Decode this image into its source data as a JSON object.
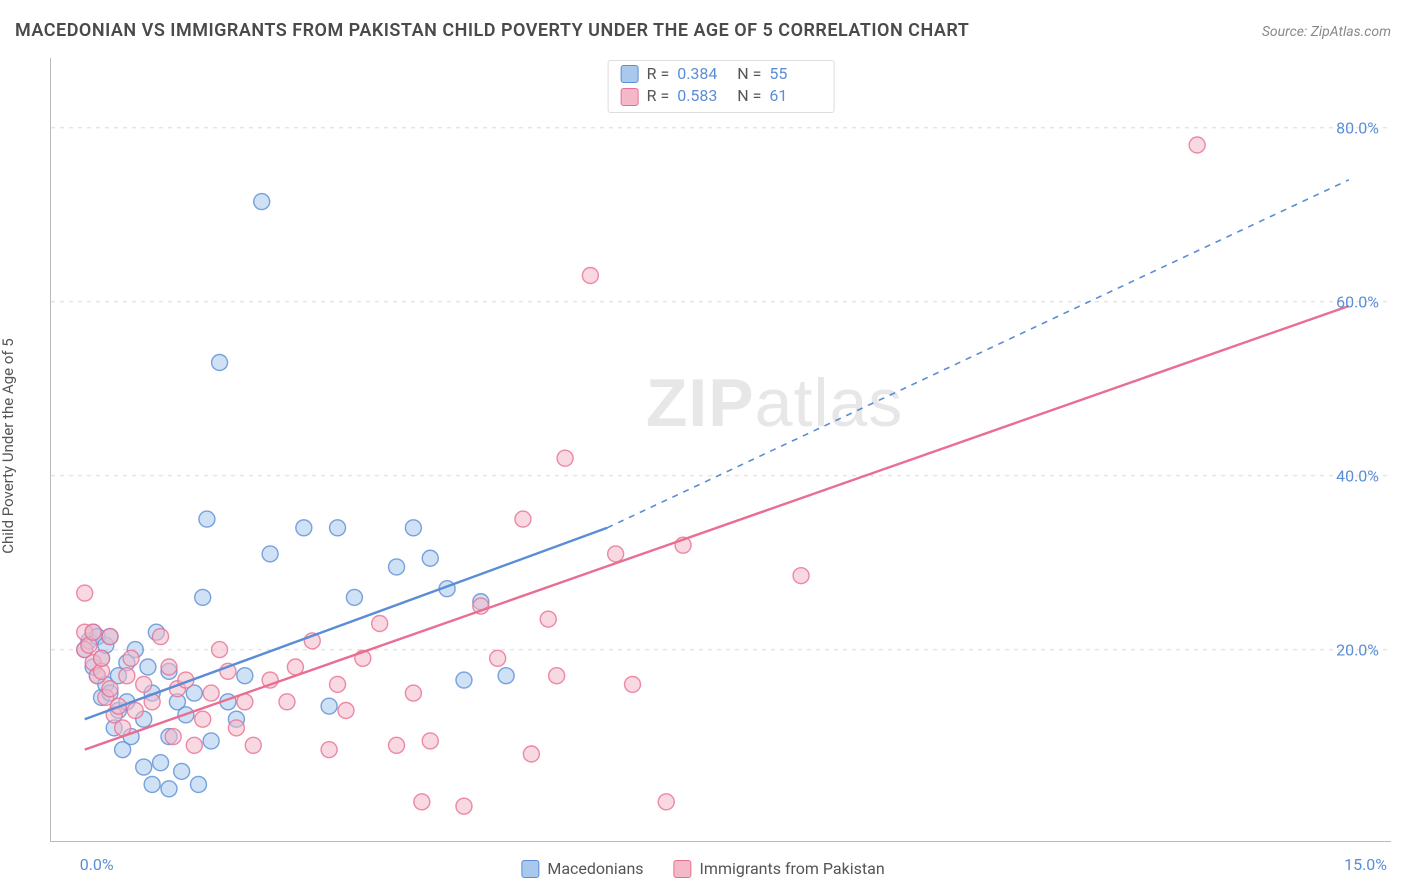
{
  "title": "MACEDONIAN VS IMMIGRANTS FROM PAKISTAN CHILD POVERTY UNDER THE AGE OF 5 CORRELATION CHART",
  "source_label": "Source: ",
  "source_name": "ZipAtlas.com",
  "ylabel": "Child Poverty Under the Age of 5",
  "watermark_a": "ZIP",
  "watermark_b": "atlas",
  "chart": {
    "type": "scatter",
    "background_color": "#ffffff",
    "grid_color": "#e5e5e5",
    "axis_color": "#bbbbbb",
    "tick_label_color": "#5b8dd6",
    "xlim": [
      -0.4,
      15.5
    ],
    "ylim": [
      -2,
      88
    ],
    "xticks": [
      {
        "v": 0.0,
        "label": "0.0%"
      },
      {
        "v": 15.0,
        "label": "15.0%"
      }
    ],
    "yticks": [
      {
        "v": 20,
        "label": "20.0%"
      },
      {
        "v": 40,
        "label": "40.0%"
      },
      {
        "v": 60,
        "label": "60.0%"
      },
      {
        "v": 80,
        "label": "80.0%"
      }
    ],
    "marker_radius": 8,
    "marker_opacity": 0.55,
    "marker_stroke_width": 1.4,
    "trend_line_width": 2.4,
    "series": [
      {
        "key": "macedonians",
        "label": "Macedonians",
        "color_fill": "#a8c8ec",
        "color_stroke": "#5b8dd6",
        "R_label": "R =",
        "R_value": "0.384",
        "N_label": "N =",
        "N_value": "55",
        "trend": {
          "x1": 0.0,
          "y1": 12.0,
          "x2_solid": 6.2,
          "y2_solid": 34.0,
          "x2_dash": 15.0,
          "y2_dash": 74.0,
          "dash_pattern": "6,6"
        },
        "points": [
          [
            0.0,
            20
          ],
          [
            0.05,
            21
          ],
          [
            0.1,
            22
          ],
          [
            0.1,
            18
          ],
          [
            0.15,
            17
          ],
          [
            0.15,
            21.5
          ],
          [
            0.2,
            14.5
          ],
          [
            0.2,
            19
          ],
          [
            0.25,
            16
          ],
          [
            0.25,
            20.5
          ],
          [
            0.3,
            15
          ],
          [
            0.3,
            21.5
          ],
          [
            0.35,
            11
          ],
          [
            0.4,
            13
          ],
          [
            0.4,
            17
          ],
          [
            0.45,
            8.5
          ],
          [
            0.5,
            14
          ],
          [
            0.5,
            18.5
          ],
          [
            0.55,
            10
          ],
          [
            0.6,
            20
          ],
          [
            0.7,
            6.5
          ],
          [
            0.7,
            12
          ],
          [
            0.75,
            18
          ],
          [
            0.8,
            4.5
          ],
          [
            0.8,
            15
          ],
          [
            0.85,
            22
          ],
          [
            0.9,
            7
          ],
          [
            1.0,
            4
          ],
          [
            1.0,
            10
          ],
          [
            1.0,
            17.5
          ],
          [
            1.1,
            14
          ],
          [
            1.15,
            6
          ],
          [
            1.2,
            12.5
          ],
          [
            1.3,
            15
          ],
          [
            1.35,
            4.5
          ],
          [
            1.4,
            26
          ],
          [
            1.45,
            35
          ],
          [
            1.5,
            9.5
          ],
          [
            1.6,
            53
          ],
          [
            1.7,
            14
          ],
          [
            1.8,
            12
          ],
          [
            1.9,
            17
          ],
          [
            2.1,
            71.5
          ],
          [
            2.2,
            31
          ],
          [
            2.6,
            34
          ],
          [
            2.9,
            13.5
          ],
          [
            3.0,
            34
          ],
          [
            3.2,
            26
          ],
          [
            3.7,
            29.5
          ],
          [
            3.9,
            34
          ],
          [
            4.1,
            30.5
          ],
          [
            4.3,
            27
          ],
          [
            4.5,
            16.5
          ],
          [
            4.7,
            25.5
          ],
          [
            5.0,
            17
          ]
        ]
      },
      {
        "key": "pakistan",
        "label": "Immigrants from Pakistan",
        "color_fill": "#f4b9c9",
        "color_stroke": "#e86f92",
        "R_label": "R =",
        "R_value": "0.583",
        "N_label": "N =",
        "N_value": "61",
        "trend": {
          "x1": 0.0,
          "y1": 8.5,
          "x2_solid": 15.0,
          "y2_solid": 59.5,
          "x2_dash": 15.0,
          "y2_dash": 59.5,
          "dash_pattern": ""
        },
        "points": [
          [
            0.0,
            26.5
          ],
          [
            0.0,
            22
          ],
          [
            0.0,
            20
          ],
          [
            0.05,
            20.5
          ],
          [
            0.1,
            22
          ],
          [
            0.1,
            18.5
          ],
          [
            0.15,
            17
          ],
          [
            0.2,
            17.5
          ],
          [
            0.2,
            19
          ],
          [
            0.25,
            14.5
          ],
          [
            0.3,
            15.5
          ],
          [
            0.3,
            21.5
          ],
          [
            0.35,
            12.5
          ],
          [
            0.4,
            13.5
          ],
          [
            0.45,
            11
          ],
          [
            0.5,
            17
          ],
          [
            0.55,
            19
          ],
          [
            0.6,
            13
          ],
          [
            0.7,
            16
          ],
          [
            0.8,
            14
          ],
          [
            0.9,
            21.5
          ],
          [
            1.0,
            18
          ],
          [
            1.05,
            10
          ],
          [
            1.1,
            15.5
          ],
          [
            1.2,
            16.5
          ],
          [
            1.3,
            9
          ],
          [
            1.4,
            12
          ],
          [
            1.5,
            15
          ],
          [
            1.6,
            20
          ],
          [
            1.7,
            17.5
          ],
          [
            1.8,
            11
          ],
          [
            1.9,
            14
          ],
          [
            2.0,
            9
          ],
          [
            2.2,
            16.5
          ],
          [
            2.4,
            14
          ],
          [
            2.5,
            18
          ],
          [
            2.7,
            21
          ],
          [
            2.9,
            8.5
          ],
          [
            3.0,
            16
          ],
          [
            3.1,
            13
          ],
          [
            3.3,
            19
          ],
          [
            3.5,
            23
          ],
          [
            3.7,
            9
          ],
          [
            3.9,
            15
          ],
          [
            4.0,
            2.5
          ],
          [
            4.1,
            9.5
          ],
          [
            4.5,
            2
          ],
          [
            4.7,
            25
          ],
          [
            4.9,
            19
          ],
          [
            5.2,
            35
          ],
          [
            5.3,
            8
          ],
          [
            5.5,
            23.5
          ],
          [
            5.6,
            17
          ],
          [
            5.7,
            42
          ],
          [
            6.0,
            63
          ],
          [
            6.3,
            31
          ],
          [
            6.5,
            16
          ],
          [
            6.9,
            2.5
          ],
          [
            7.1,
            32
          ],
          [
            8.5,
            28.5
          ],
          [
            13.2,
            78
          ]
        ]
      }
    ]
  }
}
